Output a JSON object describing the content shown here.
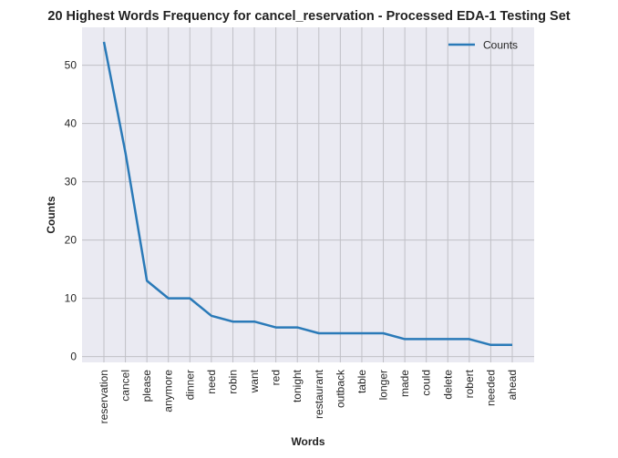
{
  "chart_data": {
    "type": "line",
    "title": "20 Highest Words Frequency for cancel_reservation - Processed EDA-1 Testing Set",
    "xlabel": "Words",
    "ylabel": "Counts",
    "categories": [
      "reservation",
      "cancel",
      "please",
      "anymore",
      "dinner",
      "need",
      "robin",
      "want",
      "red",
      "tonight",
      "restaurant",
      "outback",
      "table",
      "longer",
      "made",
      "could",
      "delete",
      "robert",
      "needed",
      "ahead"
    ],
    "series": [
      {
        "name": "Counts",
        "values": [
          54,
          35,
          13,
          10,
          10,
          7,
          6,
          6,
          5,
          5,
          4,
          4,
          4,
          4,
          3,
          3,
          3,
          3,
          2,
          2
        ]
      }
    ],
    "yticks": [
      0,
      10,
      20,
      30,
      40,
      50
    ],
    "ylim": [
      -1,
      56.5
    ],
    "grid": true,
    "legend": "top-right",
    "colors": {
      "line": "#2a7ab8",
      "background": "#eaeaf2",
      "grid": "#c0c0c6"
    }
  }
}
